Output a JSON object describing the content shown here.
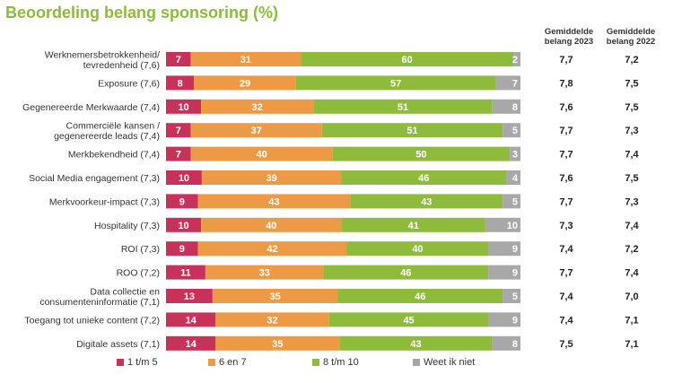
{
  "chart_data": {
    "type": "bar",
    "orientation": "horizontal-stacked-percent",
    "title": "Beoordeling belang sponsoring (%)",
    "categories": [
      [
        "Werknemersbetrokkenheid/",
        "tevredenheid (7,6)"
      ],
      [
        "Exposure (7,6)"
      ],
      [
        "Gegenereerde Merkwaarde (7,4)"
      ],
      [
        "Commerciële kansen /",
        "gegenereerde leads (7,4)"
      ],
      [
        "Merkbekendheid (7,4)"
      ],
      [
        "Social Media engagement (7,3)"
      ],
      [
        "Merkvoorkeur-impact (7,3)"
      ],
      [
        "Hospitality (7,3)"
      ],
      [
        "ROI (7,3)"
      ],
      [
        "ROO (7,2)"
      ],
      [
        "Data collectie en",
        "consumenteninformatie (7,1)"
      ],
      [
        "Toegang tot unieke content (7,2)"
      ],
      [
        "Digitale assets (7,1)"
      ]
    ],
    "series": [
      {
        "name": "1 t/m 5",
        "color": "#c8325a",
        "values": [
          7,
          8,
          10,
          7,
          7,
          10,
          9,
          10,
          9,
          11,
          13,
          14,
          14
        ]
      },
      {
        "name": "6 en 7",
        "color": "#ec9a46",
        "values": [
          31,
          29,
          32,
          37,
          40,
          39,
          43,
          40,
          42,
          33,
          35,
          32,
          35
        ]
      },
      {
        "name": "8 t/m 10",
        "color": "#8ebb3c",
        "values": [
          60,
          57,
          51,
          51,
          50,
          46,
          43,
          41,
          40,
          46,
          46,
          45,
          43
        ]
      },
      {
        "name": "Weet ik niet",
        "color": "#a8a8a8",
        "values": [
          2,
          7,
          8,
          5,
          3,
          4,
          5,
          10,
          9,
          9,
          5,
          9,
          8
        ]
      }
    ],
    "columns": [
      {
        "header": [
          "Gemiddelde",
          "belang 2023"
        ],
        "values": [
          "7,7",
          "7,8",
          "7,6",
          "7,7",
          "7,7",
          "7,6",
          "7,7",
          "7,3",
          "7,4",
          "7,7",
          "7,4",
          "7,4",
          "7,5"
        ]
      },
      {
        "header": [
          "Gemiddelde",
          "belang 2022"
        ],
        "values": [
          "7,2",
          "7,5",
          "7,5",
          "7,3",
          "7,4",
          "7,5",
          "7,3",
          "7,4",
          "7,2",
          "7,4",
          "7,0",
          "7,1",
          "7,1"
        ]
      }
    ],
    "title_color": "#8ebb3c",
    "legend_position": "bottom"
  }
}
